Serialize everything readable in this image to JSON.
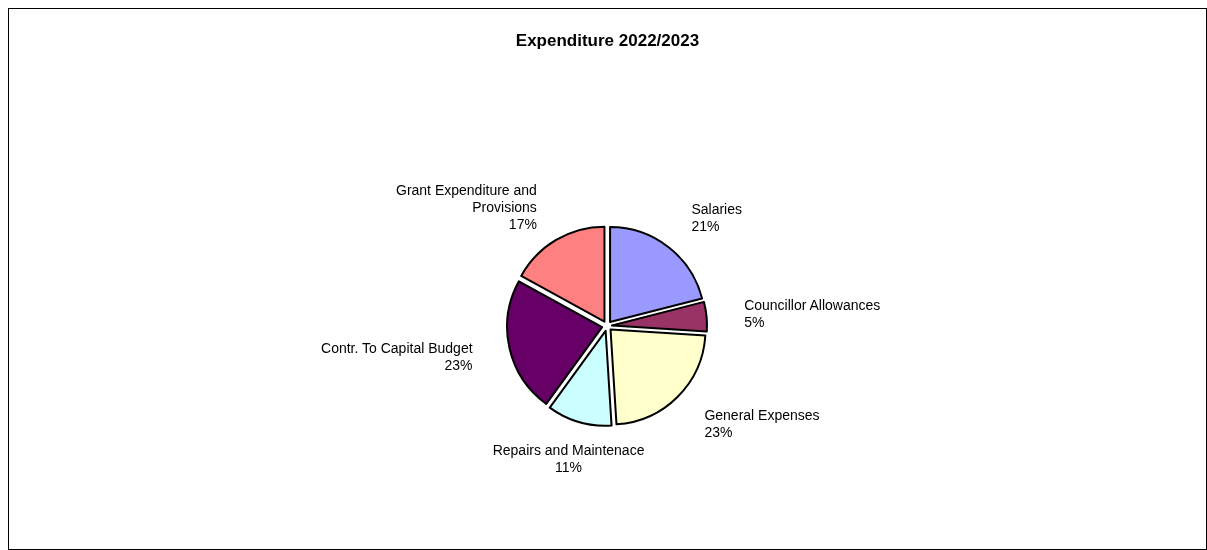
{
  "chart_data": {
    "type": "pie",
    "title": "Expenditure 2022/2023",
    "categories": [
      "Salaries",
      "Councillor Allowances",
      "General Expenses",
      "Repairs and Maintenace",
      "Contr. To Capital Budget",
      "Grant Expenditure and Provisions"
    ],
    "values": [
      21,
      5,
      23,
      11,
      23,
      17
    ],
    "value_labels": [
      "21%",
      "5%",
      "23%",
      "11%",
      "23%",
      "17%"
    ],
    "colors": [
      "#9999ff",
      "#993366",
      "#ffffcc",
      "#ccffff",
      "#660066",
      "#ff8080"
    ],
    "legend": false
  }
}
